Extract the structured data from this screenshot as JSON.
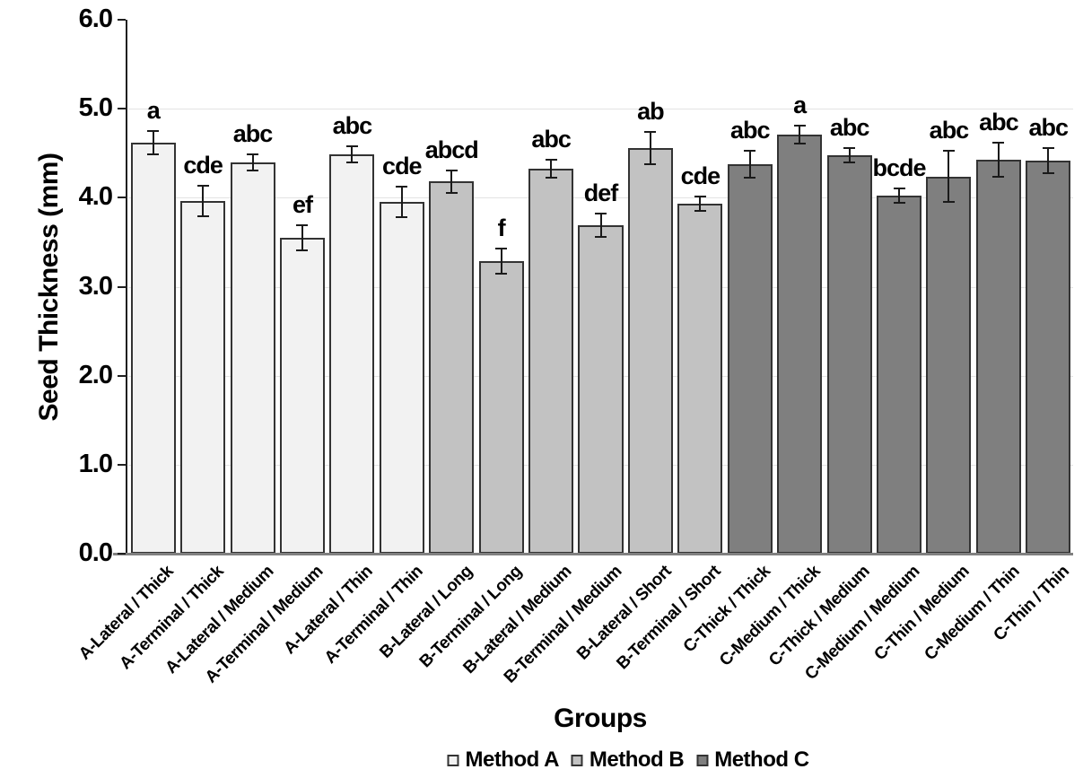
{
  "chart_data": {
    "type": "bar",
    "title": "",
    "xlabel": "Groups",
    "ylabel": "Seed Thickness (mm)",
    "ylim": [
      0.0,
      6.0
    ],
    "ytick_step": 1.0,
    "ytick_labels": [
      "0.0",
      "1.0",
      "2.0",
      "3.0",
      "4.0",
      "5.0",
      "6.0"
    ],
    "grid": "horizontal-major",
    "legend_position": "bottom",
    "categories": [
      "A-Lateral / Thick",
      "A-Terminal / Thick",
      "A-Lateral / Medium",
      "A-Terminal / Medium",
      "A-Lateral / Thin",
      "A-Terminal / Thin",
      "B-Lateral / Long",
      "B-Terminal / Long",
      "B-Lateral / Medium",
      "B-Terminal / Medium",
      "B-Lateral / Short",
      "B-Terminal / Short",
      "C-Thick / Thick",
      "C-Medium / Thick",
      "C-Thick / Medium",
      "C-Medium / Medium",
      "C-Thin / Medium",
      "C-Medium / Thin",
      "C-Thin / Thin"
    ],
    "values": [
      4.62,
      3.96,
      4.4,
      3.55,
      4.49,
      3.95,
      4.18,
      3.29,
      4.33,
      3.69,
      4.56,
      3.93,
      4.38,
      4.71,
      4.48,
      4.02,
      4.24,
      4.43,
      4.42
    ],
    "errors": [
      0.13,
      0.17,
      0.09,
      0.14,
      0.09,
      0.17,
      0.13,
      0.14,
      0.1,
      0.13,
      0.18,
      0.08,
      0.15,
      0.1,
      0.08,
      0.08,
      0.29,
      0.19,
      0.14
    ],
    "sig_letters": [
      "a",
      "cde",
      "abc",
      "ef",
      "abc",
      "cde",
      "abcd",
      "f",
      "abc",
      "def",
      "ab",
      "cde",
      "abc",
      "a",
      "abc",
      "bcde",
      "abc",
      "abc",
      "abc"
    ],
    "bar_series": [
      "A",
      "A",
      "A",
      "A",
      "A",
      "A",
      "B",
      "B",
      "B",
      "B",
      "B",
      "B",
      "C",
      "C",
      "C",
      "C",
      "C",
      "C",
      "C"
    ],
    "series_colors": {
      "A": "#f2f2f2",
      "B": "#c2c2c2",
      "C": "#7f7f7f"
    },
    "bar_border_color": "#333333",
    "error_bar_color": "#1a1a1a",
    "gridline_color": "#e3e3e3",
    "legend": [
      {
        "label": "Method A",
        "color": "#f2f2f2"
      },
      {
        "label": "Method B",
        "color": "#c2c2c2"
      },
      {
        "label": "Method C",
        "color": "#7f7f7f"
      }
    ]
  }
}
